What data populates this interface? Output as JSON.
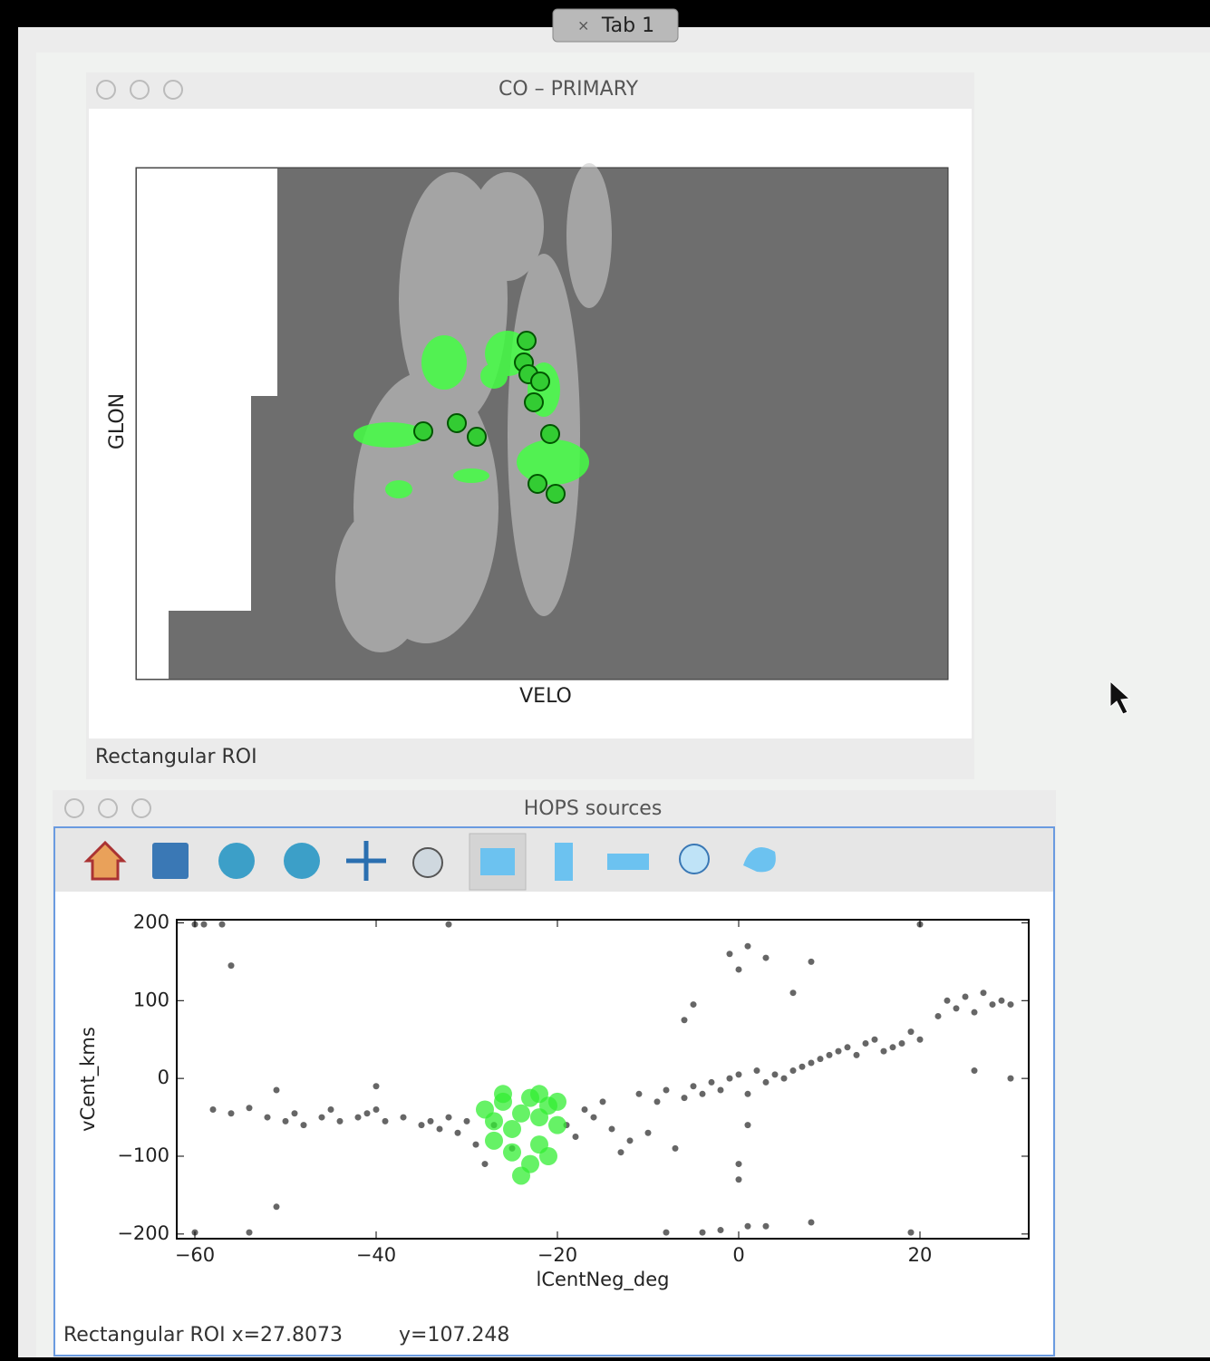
{
  "tab": {
    "label": "Tab 1"
  },
  "image_window": {
    "title": "CO – PRIMARY",
    "ylabel": "GLON",
    "xlabel": "VELO",
    "status": "Rectangular ROI"
  },
  "scatter_window": {
    "title": "HOPS sources",
    "status_roi": "Rectangular ROI x=27.8073",
    "status_y": "y=107.248"
  },
  "chart_data": {
    "type": "scatter",
    "xlabel": "lCentNeg_deg",
    "ylabel": "vCent_kms",
    "xlim": [
      -62,
      32
    ],
    "ylim": [
      -206,
      204
    ],
    "xticks": [
      {
        "value": -60,
        "label": "−60"
      },
      {
        "value": -40,
        "label": "−40"
      },
      {
        "value": -20,
        "label": "−20"
      },
      0,
      20
    ],
    "yticks": [
      {
        "value": -200,
        "label": "−200"
      },
      {
        "value": -100,
        "label": "−100"
      },
      0,
      100,
      200
    ],
    "series": [
      {
        "color": "#000000",
        "x": [
          -60,
          -59,
          -57,
          -32,
          20,
          -56,
          -51,
          -60,
          -54,
          -8,
          -4,
          -2,
          1,
          3,
          8,
          19,
          -58,
          -56,
          -54,
          -52,
          -51,
          -50,
          -49,
          -48,
          -46,
          -45,
          -44,
          -42,
          -41,
          -40,
          -40,
          -39,
          -37,
          -35,
          -34,
          -33,
          -32,
          -31,
          -30,
          -29,
          -28,
          -27,
          -25,
          -19,
          -18,
          -17,
          -16,
          -15,
          -14,
          -13,
          -12,
          -11,
          -10,
          -9,
          -8,
          -7,
          -6,
          -5,
          -4,
          -3,
          -2,
          -1,
          0,
          1,
          1,
          2,
          3,
          4,
          5,
          6,
          7,
          8,
          9,
          10,
          11,
          12,
          13,
          14,
          15,
          16,
          17,
          18,
          19,
          20,
          22,
          23,
          24,
          25,
          26,
          27,
          28,
          29,
          30,
          30,
          26,
          -1,
          0,
          1,
          3,
          8,
          -5,
          -6,
          6,
          0,
          0
        ],
        "values": [
          198,
          198,
          198,
          198,
          198,
          145,
          -165,
          -198,
          -198,
          -198,
          -198,
          -195,
          -190,
          -190,
          -185,
          -198,
          -40,
          -45,
          -38,
          -50,
          -15,
          -55,
          -45,
          -60,
          -50,
          -40,
          -55,
          -50,
          -45,
          -40,
          -10,
          -55,
          -50,
          -60,
          -55,
          -65,
          -50,
          -70,
          -55,
          -85,
          -110,
          -60,
          -90,
          -60,
          -75,
          -40,
          -50,
          -30,
          -65,
          -95,
          -80,
          -20,
          -70,
          -30,
          -15,
          -90,
          -25,
          -10,
          -20,
          -5,
          -15,
          0,
          5,
          -20,
          -60,
          10,
          -5,
          5,
          0,
          10,
          15,
          20,
          25,
          30,
          35,
          40,
          30,
          45,
          50,
          35,
          40,
          45,
          60,
          50,
          80,
          100,
          90,
          105,
          85,
          110,
          95,
          100,
          95,
          0,
          10,
          160,
          140,
          170,
          155,
          150,
          95,
          75,
          110,
          -130,
          -110
        ]
      },
      {
        "color": "#33ee33",
        "x": [
          -28,
          -27,
          -26,
          -25,
          -24,
          -23,
          -22,
          -21,
          -20,
          -27,
          -25,
          -23,
          -22,
          -21,
          -24,
          -26,
          -22,
          -20
        ],
        "values": [
          -40,
          -55,
          -30,
          -65,
          -45,
          -25,
          -50,
          -35,
          -30,
          -80,
          -95,
          -110,
          -85,
          -100,
          -125,
          -20,
          -20,
          -60
        ]
      }
    ]
  }
}
